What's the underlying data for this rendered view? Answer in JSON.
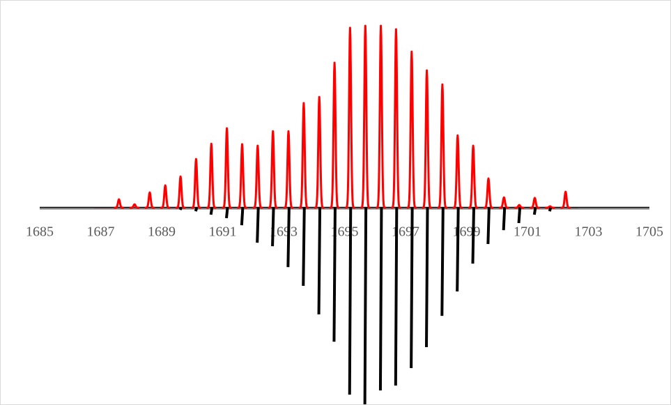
{
  "chart_data": {
    "type": "mirror-spectrum",
    "xlim": [
      1685,
      1705
    ],
    "xticks": [
      1685,
      1687,
      1689,
      1691,
      1693,
      1695,
      1697,
      1699,
      1701,
      1703,
      1705
    ],
    "ylim": [
      -108,
      100
    ],
    "series": [
      {
        "color": "#ff0000",
        "style": "profile",
        "x": [
          1687.6,
          1688.11,
          1688.61,
          1689.12,
          1689.62,
          1690.13,
          1690.63,
          1691.14,
          1691.64,
          1692.15,
          1692.65,
          1693.16,
          1693.66,
          1694.17,
          1694.67,
          1695.18,
          1695.68,
          1696.19,
          1696.69,
          1697.2,
          1697.7,
          1698.21,
          1698.71,
          1699.22,
          1699.72,
          1700.23,
          1700.73,
          1701.24,
          1701.74,
          1702.25
        ],
        "values": [
          4.6,
          1.9,
          8.4,
          12.3,
          17.2,
          26.8,
          35.2,
          43.7,
          34.9,
          34.1,
          42.1,
          42.1,
          57.5,
          60.9,
          79.7,
          98.9,
          100,
          100,
          98.1,
          85.8,
          75.5,
          67.8,
          39.8,
          34.1,
          16.1,
          5.7,
          1.5,
          5.4,
          0.8,
          8.8
        ]
      },
      {
        "color": "#000000",
        "style": "stick",
        "x": [
          1689.64,
          1690.15,
          1690.65,
          1691.16,
          1691.66,
          1692.17,
          1692.67,
          1693.18,
          1693.68,
          1694.19,
          1694.69,
          1695.2,
          1695.7,
          1696.21,
          1696.71,
          1697.22,
          1697.72,
          1698.23,
          1698.73,
          1699.24,
          1699.74,
          1700.25,
          1700.75,
          1701.26,
          1701.76
        ],
        "values": [
          -1.1,
          -1.9,
          -3.8,
          -5.7,
          -9.6,
          -19.2,
          -21.1,
          -32.6,
          -42.9,
          -58.6,
          -73.6,
          -102.7,
          -108,
          -100.4,
          -97.7,
          -88.1,
          -76.6,
          -59.4,
          -46,
          -30.7,
          -19.9,
          -12.3,
          -8.4,
          -3.8,
          -1.9
        ]
      }
    ]
  }
}
